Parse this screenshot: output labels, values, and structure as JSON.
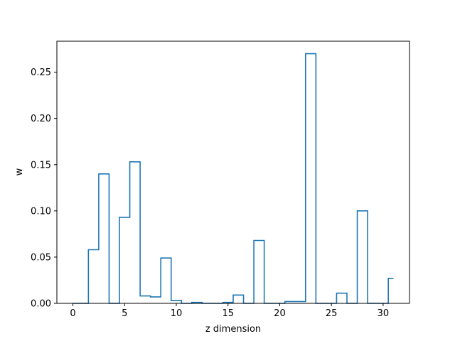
{
  "chart_data": {
    "type": "line",
    "style": "step",
    "title": "",
    "xlabel": "z dimension",
    "ylabel": "w",
    "xlim": [
      -1.55,
      32.55
    ],
    "ylim": [
      0,
      0.2835
    ],
    "xticks": [
      0,
      5,
      10,
      15,
      20,
      25,
      30
    ],
    "xtick_labels": [
      "0",
      "5",
      "10",
      "15",
      "20",
      "25",
      "30"
    ],
    "yticks": [
      0,
      0.05,
      0.1,
      0.15,
      0.2,
      0.25
    ],
    "ytick_labels": [
      "0.00",
      "0.05",
      "0.10",
      "0.15",
      "0.20",
      "0.25"
    ],
    "grid": false,
    "series": [
      {
        "color": "#1f77b4",
        "x": [
          0,
          1,
          2,
          3,
          4,
          5,
          6,
          7,
          8,
          9,
          10,
          11,
          12,
          13,
          14,
          15,
          16,
          17,
          18,
          19,
          20,
          21,
          22,
          23,
          24,
          25,
          26,
          27,
          28,
          29,
          30,
          31
        ],
        "values": [
          0.0,
          0.0,
          0.058,
          0.14,
          0.0,
          0.093,
          0.153,
          0.008,
          0.007,
          0.049,
          0.003,
          0.0,
          0.001,
          0.0,
          0.0,
          0.001,
          0.009,
          0.0,
          0.068,
          0.0,
          0.0,
          0.002,
          0.002,
          0.27,
          0.0,
          0.0,
          0.011,
          0.0,
          0.1,
          0.0,
          0.0,
          0.027
        ]
      }
    ]
  }
}
